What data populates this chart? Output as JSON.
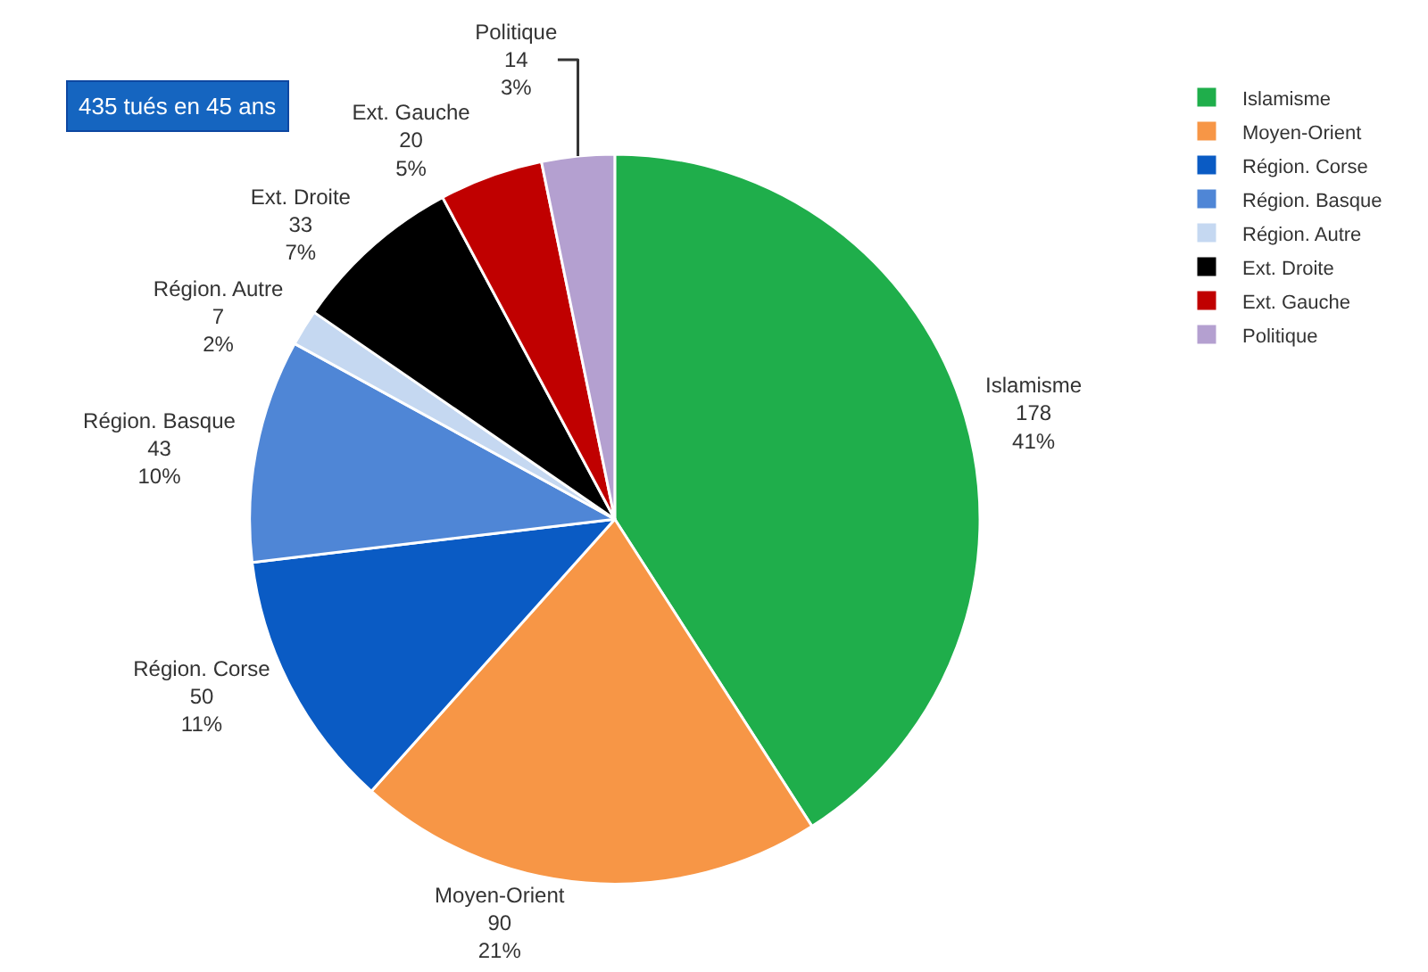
{
  "chart_data": {
    "type": "pie",
    "categories": [
      "Islamisme",
      "Moyen-Orient",
      "Région. Corse",
      "Région. Basque",
      "Région. Autre",
      "Ext. Droite",
      "Ext. Gauche",
      "Politique"
    ],
    "values": [
      178,
      90,
      50,
      43,
      7,
      33,
      20,
      14
    ],
    "value_labels": [
      "178\n41%",
      "90\n21%",
      "50\n11%",
      "43\n10%",
      "7\n2%",
      "33\n7%",
      "20\n5%",
      "14\n3%"
    ],
    "colors": [
      "#1fae4b",
      "#f79646",
      "#0a5bc4",
      "#4f86d6",
      "#c5d8f1",
      "#000000",
      "#c00000",
      "#b4a0d0"
    ],
    "legend": "top right",
    "annotations": [
      "435 tués en 45 ans"
    ]
  }
}
